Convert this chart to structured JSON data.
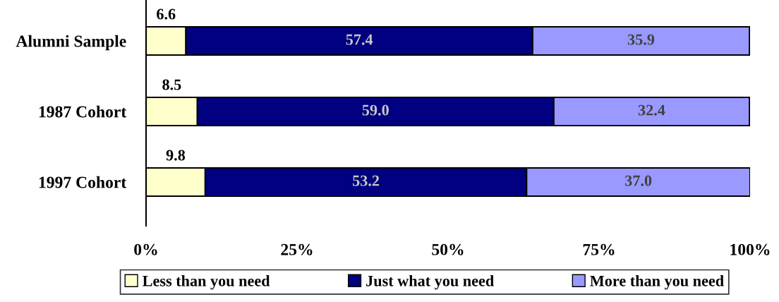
{
  "chart_data": {
    "type": "bar",
    "orientation": "horizontal",
    "stacked": true,
    "categories": [
      "Alumni Sample",
      "1987 Cohort",
      "1997 Cohort"
    ],
    "series": [
      {
        "name": "Less than you need",
        "color": "#ffffcc",
        "values": [
          6.6,
          8.5,
          9.8
        ],
        "value_labels": [
          "6.6",
          "8.5",
          "9.8"
        ]
      },
      {
        "name": "Just what you need",
        "color": "#000080",
        "values": [
          57.4,
          59.0,
          53.2
        ],
        "value_labels": [
          "57.4",
          "59.0",
          "53.2"
        ]
      },
      {
        "name": "More than you need",
        "color": "#9999ff",
        "values": [
          35.9,
          32.4,
          37.0
        ],
        "value_labels": [
          "35.9",
          "32.4",
          "37.0"
        ]
      }
    ],
    "xlim": [
      0,
      100
    ],
    "xticks": [
      {
        "value": 0,
        "label": "0%"
      },
      {
        "value": 25,
        "label": "25%"
      },
      {
        "value": 50,
        "label": "50%"
      },
      {
        "value": 75,
        "label": "75%"
      },
      {
        "value": 100,
        "label": "100%"
      }
    ],
    "grid": false,
    "legend": "bottom"
  }
}
